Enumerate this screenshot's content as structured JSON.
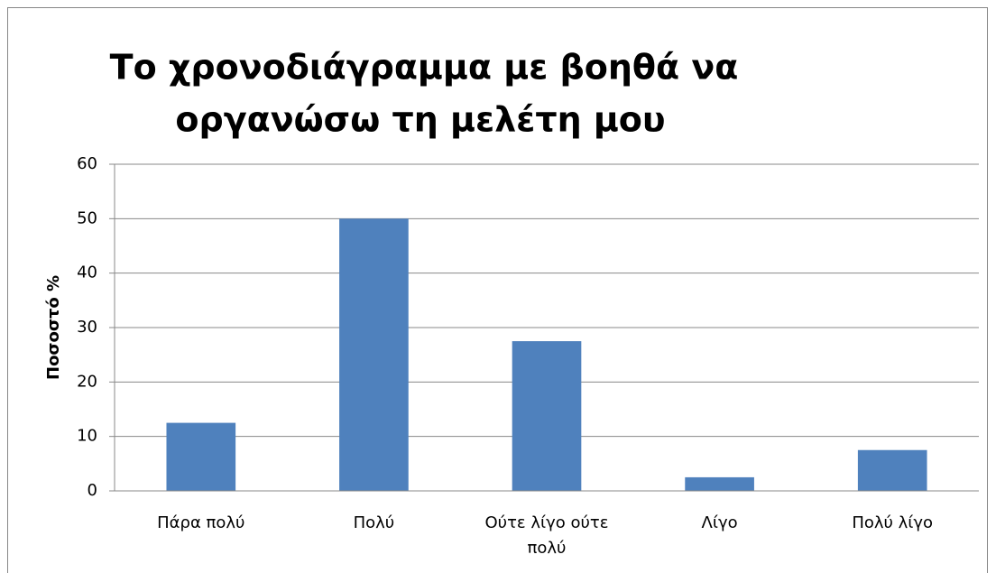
{
  "chart_data": {
    "type": "bar",
    "title": [
      "Το χρονοδιάγραμμα με βοηθά να",
      "οργανώσω τη μελέτη μου"
    ],
    "y_label": "Ποσοστό %",
    "categories": [
      "Πάρα πολύ",
      "Πολύ",
      "Ούτε λίγο ούτε πολύ",
      "Λίγο",
      "Πολύ λίγο"
    ],
    "values": [
      12.5,
      50,
      27.5,
      2.5,
      7.5
    ],
    "color": "#4f81bd",
    "ylim": [
      0,
      60
    ],
    "yticks": [
      0,
      10,
      20,
      30,
      40,
      50,
      60
    ],
    "grid": true
  }
}
